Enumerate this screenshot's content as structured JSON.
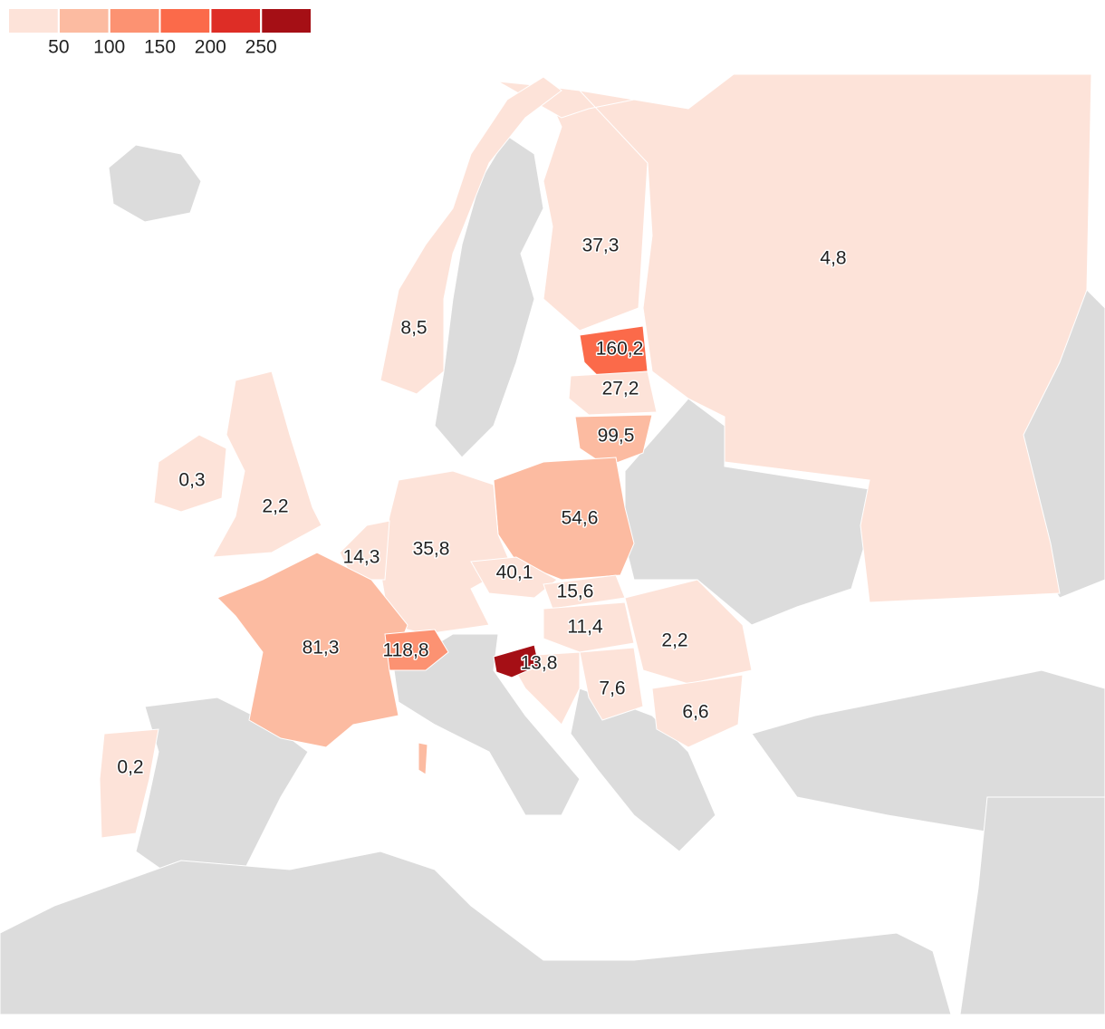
{
  "chart_data": {
    "type": "choropleth",
    "values": [
      37.3,
      4.8,
      8.5,
      160.2,
      27.2,
      99.5,
      0.3,
      2.2,
      54.6,
      35.8,
      14.3,
      40.1,
      15.6,
      11.4,
      2.2,
      13.8,
      7.6,
      6.6,
      81.3,
      118.8,
      0.2
    ],
    "value_labels": [
      "37,3",
      "4,8",
      "8,5",
      "160,2",
      "27,2",
      "99,5",
      "0,3",
      "2,2",
      "54,6",
      "35,8",
      "14,3",
      "40,1",
      "15,6",
      "11,4",
      "2,2",
      "13,8",
      "7,6",
      "6,6",
      "81,3",
      "118,8",
      "0,2"
    ],
    "legend_lim": [
      0,
      300
    ],
    "legend_ticks": [
      50,
      100,
      150,
      200,
      250
    ],
    "colors": [
      "#fde3d9",
      "#fcbba1",
      "#fc9272",
      "#fb6a4a",
      "#de2d26",
      "#a50f15"
    ]
  }
}
